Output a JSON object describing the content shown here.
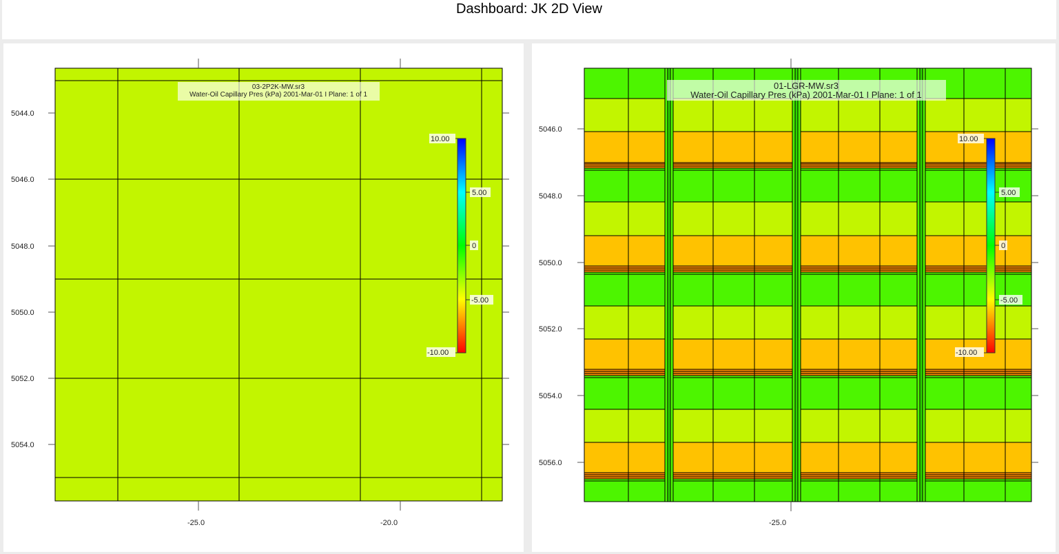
{
  "dashboard": {
    "title": "Dashboard: JK 2D View"
  },
  "views": [
    {
      "file": "03-2P2K-MW.sr3",
      "subtitle": "Water-Oil Capillary Pres (kPa)  2001-Mar-01   I Plane: 1 of 1",
      "y_ticks": [
        "5044.0",
        "5046.0",
        "5048.0",
        "5050.0",
        "5052.0",
        "5054.0"
      ],
      "x_ticks": [
        "-25.0",
        "-20.0"
      ],
      "colorbar": {
        "max": "10.00",
        "q3": "5.00",
        "mid": "0",
        "q1": "-5.00",
        "min": "-10.00"
      },
      "cell_value": -3.0,
      "fill_color": "#c2f500"
    },
    {
      "file": "01-LGR-MW.sr3",
      "subtitle": "Water-Oil Capillary Pres (kPa)  2001-Mar-01   I Plane: 1 of 1",
      "y_ticks": [
        "5046.0",
        "5048.0",
        "5050.0",
        "5052.0",
        "5054.0",
        "5056.0"
      ],
      "x_ticks": [
        "-25.0"
      ],
      "colorbar": {
        "max": "10.00",
        "q3": "5.00",
        "mid": "0",
        "q1": "-5.00",
        "min": "-10.00"
      },
      "layer_colors": {
        "green": "#4df500",
        "yellow_green": "#c2f500",
        "orange": "#ffc200"
      }
    }
  ]
}
